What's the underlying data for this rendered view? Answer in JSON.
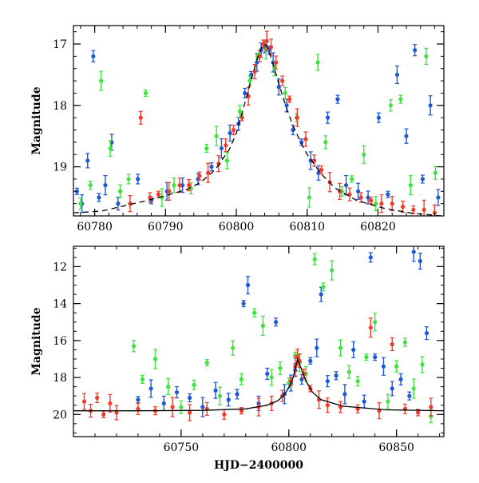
{
  "chart_data": [
    {
      "type": "scatter",
      "title": "",
      "ylabel": "Magnitude",
      "xlabel": "",
      "xlim": [
        60777,
        60829.3
      ],
      "ylim": [
        19.8,
        16.7
      ],
      "y_inverted": true,
      "x_ticks": [
        60780,
        60790,
        60800,
        60810,
        60820
      ],
      "x_minor_step": 2,
      "y_ticks": [
        17,
        18,
        19
      ],
      "y_minor_step": 0.2,
      "colors": {
        "blue": "#1f57d6",
        "green": "#3fe23f",
        "red": "#f23a2a",
        "model": "#000000"
      },
      "model": {
        "style": "dashed",
        "x": [
          60777,
          60781,
          60784,
          60787,
          60790,
          60793,
          60795,
          60797,
          60799,
          60800,
          60801,
          60802,
          60803,
          60803.6,
          60804,
          60804.4,
          60805,
          60806,
          60807,
          60808,
          60809,
          60810,
          60812,
          60814,
          60817,
          60821,
          60825,
          60829
        ],
        "y": [
          19.75,
          19.72,
          19.64,
          19.56,
          19.47,
          19.37,
          19.25,
          19.05,
          18.72,
          18.45,
          18.05,
          17.62,
          17.22,
          17.05,
          17.0,
          17.05,
          17.25,
          17.65,
          18.02,
          18.33,
          18.58,
          18.8,
          19.12,
          19.35,
          19.55,
          19.68,
          19.76,
          19.8
        ]
      },
      "series": [
        {
          "color": "blue",
          "x": [
            60777.5,
            60778.2,
            60779.0,
            60779.8,
            60780.6,
            60781.5,
            60782.4,
            60783.3,
            60786.1,
            60788.0,
            60790.2,
            60792.4,
            60794.6,
            60796.5,
            60797.9,
            60799.1,
            60800.3,
            60801.2,
            60802.1,
            60802.9,
            60803.5,
            60804.0,
            60804.6,
            60805.2,
            60806.0,
            60807.1,
            60808.0,
            60809.2,
            60810.5,
            60811.6,
            60812.9,
            60814.3,
            60815.5,
            60817.2,
            60818.6,
            60820.1,
            60821.4,
            60822.7,
            60824.0,
            60825.2,
            60826.3,
            60827.4,
            60828.5
          ],
          "y": [
            19.4,
            19.6,
            18.9,
            17.2,
            19.5,
            19.3,
            18.6,
            19.6,
            19.2,
            19.55,
            19.4,
            19.3,
            19.2,
            19.0,
            18.7,
            18.45,
            18.3,
            17.8,
            17.5,
            17.3,
            17.1,
            17.05,
            17.1,
            17.3,
            17.7,
            18.0,
            18.4,
            18.6,
            18.9,
            19.1,
            18.2,
            17.9,
            19.3,
            19.4,
            19.5,
            18.2,
            19.45,
            17.5,
            18.5,
            17.1,
            19.2,
            18.0,
            19.5
          ]
        },
        {
          "color": "green",
          "x": [
            60778.0,
            60779.4,
            60780.9,
            60782.2,
            60783.6,
            60784.8,
            60787.2,
            60789.5,
            60791.2,
            60793.6,
            60795.8,
            60797.2,
            60798.7,
            60800.5,
            60801.9,
            60803.0,
            60804.2,
            60805.4,
            60806.9,
            60808.5,
            60810.3,
            60811.5,
            60812.6,
            60814.9,
            60816.3,
            60818.0,
            60819.7,
            60821.8,
            60823.2,
            60824.6,
            60826.8,
            60828.1
          ],
          "y": [
            19.6,
            19.3,
            17.6,
            18.7,
            19.4,
            19.2,
            17.8,
            19.5,
            19.3,
            19.35,
            18.7,
            18.5,
            18.9,
            18.1,
            17.6,
            17.2,
            17.1,
            17.4,
            17.8,
            18.2,
            19.5,
            17.3,
            18.6,
            19.4,
            19.2,
            18.8,
            19.6,
            18.0,
            17.9,
            19.3,
            17.2,
            19.1
          ]
        },
        {
          "color": "red",
          "x": [
            60785.0,
            60786.5,
            60787.8,
            60789.0,
            60790.5,
            60792.0,
            60793.3,
            60794.8,
            60796.0,
            60797.5,
            60798.5,
            60799.6,
            60800.8,
            60801.7,
            60802.6,
            60803.3,
            60803.8,
            60804.3,
            60804.9,
            60805.6,
            60806.5,
            60807.5,
            60808.6,
            60809.8,
            60811.0,
            60812.0,
            60813.2,
            60814.6,
            60816.0,
            60817.6,
            60819.0,
            60820.5,
            60822.0,
            60823.5,
            60825.0,
            60826.5,
            60828.0
          ],
          "y": [
            19.6,
            18.2,
            19.5,
            19.45,
            19.4,
            19.3,
            19.3,
            19.15,
            19.1,
            18.95,
            18.65,
            18.4,
            18.2,
            17.85,
            17.45,
            17.2,
            17.0,
            16.95,
            17.05,
            17.3,
            17.6,
            17.9,
            18.2,
            18.55,
            18.9,
            19.05,
            19.25,
            19.4,
            19.45,
            19.5,
            19.55,
            19.6,
            19.6,
            19.65,
            19.7,
            19.7,
            19.75
          ]
        }
      ]
    },
    {
      "type": "scatter",
      "title": "",
      "ylabel": "Magnitude",
      "xlabel": "HJD−2400000",
      "xlim": [
        60700,
        60872
      ],
      "ylim": [
        21.2,
        10.9
      ],
      "y_inverted": true,
      "x_ticks": [
        60750,
        60800,
        60850
      ],
      "x_minor_step": 10,
      "y_ticks": [
        12,
        14,
        16,
        18,
        20
      ],
      "y_minor_step": 0.5,
      "colors": {
        "blue": "#1f57d6",
        "green": "#3fe23f",
        "red": "#f23a2a",
        "model": "#000000"
      },
      "model": {
        "style": "solid",
        "x": [
          60700,
          60730,
          60760,
          60780,
          60790,
          60795,
          60798,
          60800,
          60802,
          60804,
          60806,
          60808,
          60811,
          60815,
          60825,
          60845,
          60872
        ],
        "y": [
          19.8,
          19.8,
          19.78,
          19.7,
          19.5,
          19.25,
          18.9,
          18.55,
          18.0,
          17.0,
          17.6,
          18.2,
          18.8,
          19.2,
          19.55,
          19.75,
          19.8
        ]
      },
      "series": [
        {
          "color": "blue",
          "x": [
            60730,
            60736,
            60742,
            60748,
            60754,
            60760,
            60766,
            60772,
            60776,
            60779,
            60781,
            60786,
            60790,
            60794,
            60798,
            60801,
            60803,
            60806,
            60810,
            60813,
            60815,
            60818,
            60822,
            60826,
            60830,
            60835,
            60838,
            60840,
            60844,
            60848,
            60852,
            60856,
            60858,
            60861,
            60864
          ],
          "y": [
            19.2,
            18.6,
            19.4,
            18.8,
            19.1,
            19.6,
            18.7,
            19.2,
            18.9,
            14.0,
            13.0,
            19.4,
            17.8,
            15.0,
            18.9,
            18.3,
            17.6,
            18.1,
            17.1,
            16.4,
            13.5,
            18.2,
            17.9,
            18.9,
            16.5,
            19.3,
            11.5,
            16.9,
            17.4,
            18.6,
            18.1,
            19.0,
            11.2,
            11.7,
            15.6
          ]
        },
        {
          "color": "green",
          "x": [
            60728,
            60732,
            60738,
            60744,
            60750,
            60756,
            60762,
            60768,
            60774,
            60778,
            60784,
            60788,
            60792,
            60796,
            60800,
            60803,
            60805,
            60808,
            60812,
            60816,
            60820,
            60824,
            60828,
            60832,
            60836,
            60840,
            60846,
            60850,
            60854,
            60858,
            60862,
            60866
          ],
          "y": [
            16.3,
            18.1,
            17.0,
            18.5,
            19.6,
            18.4,
            17.2,
            19.0,
            16.4,
            18.1,
            14.5,
            15.2,
            18.0,
            17.5,
            18.3,
            16.8,
            17.2,
            17.8,
            11.6,
            13.1,
            12.2,
            16.4,
            17.7,
            18.2,
            16.9,
            15.0,
            19.3,
            17.4,
            16.1,
            18.6,
            17.3,
            20.1
          ]
        },
        {
          "color": "red",
          "x": [
            60705,
            60708,
            60711,
            60714,
            60717,
            60720,
            60730,
            60738,
            60746,
            60754,
            60762,
            60770,
            60778,
            60786,
            60792,
            60797,
            60801,
            60803,
            60804,
            60805,
            60807,
            60810,
            60814,
            60818,
            60824,
            60832,
            60838,
            60842,
            60848,
            60854,
            60860,
            60866
          ],
          "y": [
            19.3,
            19.8,
            19.1,
            20.0,
            19.4,
            19.9,
            19.7,
            19.8,
            19.6,
            19.9,
            19.7,
            20.0,
            19.8,
            19.6,
            19.4,
            19.0,
            18.2,
            17.4,
            16.9,
            17.1,
            17.8,
            18.6,
            19.2,
            19.5,
            19.6,
            19.7,
            15.3,
            19.8,
            16.2,
            19.7,
            19.9,
            19.6
          ]
        }
      ]
    }
  ]
}
